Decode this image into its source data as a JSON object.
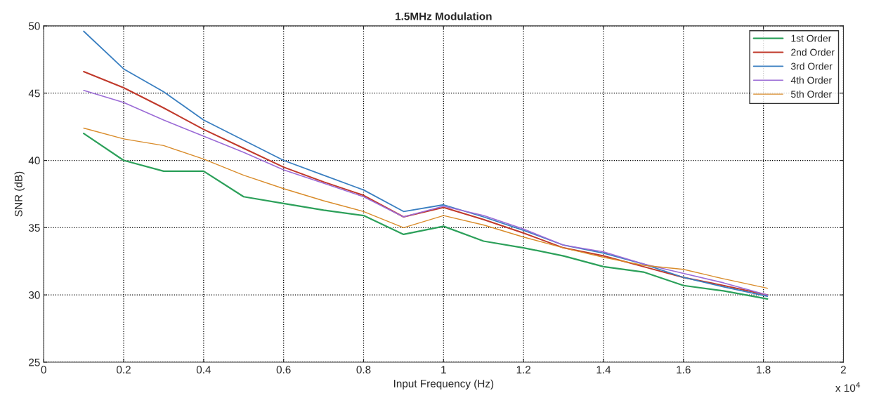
{
  "chart_data": {
    "type": "line",
    "title": "1.5MHz Modulation",
    "xlabel": "Input Frequency (Hz)",
    "ylabel": "SNR (dB)",
    "x": [
      0.1,
      0.2,
      0.3,
      0.4,
      0.5,
      0.6,
      0.7,
      0.8,
      0.9,
      1.0,
      1.1,
      1.2,
      1.3,
      1.4,
      1.5,
      1.6,
      1.7,
      1.81
    ],
    "series": [
      {
        "name": "1st Order",
        "color": "#2ca05a",
        "values": [
          42.0,
          40.0,
          39.2,
          39.2,
          37.3,
          36.8,
          36.3,
          35.9,
          34.5,
          35.1,
          34.0,
          33.5,
          32.9,
          32.1,
          31.7,
          30.7,
          30.3,
          29.7
        ]
      },
      {
        "name": "2nd Order",
        "color": "#c0392b",
        "values": [
          46.6,
          45.4,
          43.9,
          42.3,
          40.9,
          39.5,
          38.4,
          37.4,
          35.8,
          36.5,
          35.6,
          34.6,
          33.5,
          32.9,
          32.1,
          31.3,
          30.7,
          30.0
        ]
      },
      {
        "name": "3rd Order",
        "color": "#3a7fc1",
        "values": [
          49.6,
          46.8,
          45.1,
          43.0,
          41.5,
          40.0,
          38.9,
          37.8,
          36.2,
          36.7,
          35.8,
          34.8,
          33.7,
          33.1,
          32.3,
          31.3,
          30.6,
          29.9
        ]
      },
      {
        "name": "4th Order",
        "color": "#9b6bd6",
        "values": [
          45.2,
          44.3,
          43.0,
          41.8,
          40.6,
          39.3,
          38.3,
          37.3,
          35.8,
          36.6,
          35.9,
          34.9,
          33.7,
          33.2,
          32.3,
          31.6,
          30.9,
          30.0
        ]
      },
      {
        "name": "5th Order",
        "color": "#d98c2b",
        "values": [
          42.4,
          41.6,
          41.1,
          40.1,
          38.9,
          37.9,
          37.0,
          36.2,
          35.0,
          35.9,
          35.2,
          34.3,
          33.5,
          32.8,
          32.2,
          31.9,
          31.2,
          30.5
        ]
      }
    ],
    "xlim": [
      0,
      2
    ],
    "xticks": [
      0,
      0.2,
      0.4,
      0.6,
      0.8,
      1,
      1.2,
      1.4,
      1.6,
      1.8,
      2
    ],
    "ylim": [
      25,
      50
    ],
    "yticks": [
      25,
      30,
      35,
      40,
      45,
      50
    ],
    "annotations": [
      "x 10$^{4}$"
    ],
    "grid": true,
    "legend": "top right",
    "line_style": "solid",
    "marker": "none"
  }
}
